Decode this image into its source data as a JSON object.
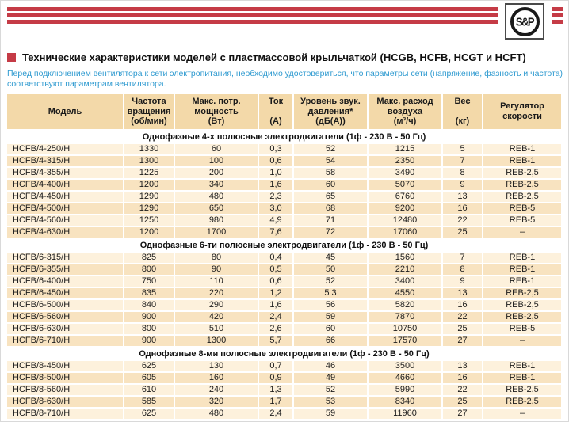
{
  "logo": {
    "text": "S&P"
  },
  "title": {
    "text": "Технические характеристики моделей с пластмассовой крыльчаткой (HCGB, HCFB, HCGT и HCFT)"
  },
  "note": {
    "text": "Перед подключением вентилятора к сети электропитания, необходимо удостовериться, что параметры сети (напряжение, фазность и частота) соответствуют параметрам вентилятора."
  },
  "colors": {
    "brand_red": "#c53b46",
    "note_blue": "#2e9ad0",
    "header_tan": "#f3d9a9",
    "row_light": "#fdf1dc",
    "row_dark": "#f8e3c0"
  },
  "table": {
    "columns": [
      {
        "key": "model",
        "label": "Модель"
      },
      {
        "key": "rpm",
        "label": "Частота\nвращения\n(об/мин)"
      },
      {
        "key": "power",
        "label": "Макс. потр.\nмощность\n(Вт)"
      },
      {
        "key": "current",
        "label": "Ток\n\n(А)"
      },
      {
        "key": "noise",
        "label": "Уровень звук.\nдавления*\n(дБ(А))"
      },
      {
        "key": "airflow",
        "label": "Макс. расход\nвоздуха\n(м³/ч)"
      },
      {
        "key": "weight",
        "label": "Вес\n\n(кг)"
      },
      {
        "key": "regulator",
        "label": "Регулятор\nскорости"
      }
    ],
    "sections": [
      {
        "header": "Однофазные 4-х полюсные электродвигатели (1ф - 230 В - 50 Гц)",
        "rows": [
          {
            "model": "HCFB/4-250/H",
            "rpm": "1330",
            "power": "60",
            "current": "0,3",
            "noise": "52",
            "airflow": "1215",
            "weight": "5",
            "regulator": "REB-1"
          },
          {
            "model": "HCFB/4-315/H",
            "rpm": "1300",
            "power": "100",
            "current": "0,6",
            "noise": "54",
            "airflow": "2350",
            "weight": "7",
            "regulator": "REB-1"
          },
          {
            "model": "HCFB/4-355/H",
            "rpm": "1225",
            "power": "200",
            "current": "1,0",
            "noise": "58",
            "airflow": "3490",
            "weight": "8",
            "regulator": "REB-2,5"
          },
          {
            "model": "HCFB/4-400/H",
            "rpm": "1200",
            "power": "340",
            "current": "1,6",
            "noise": "60",
            "airflow": "5070",
            "weight": "9",
            "regulator": "REB-2,5"
          },
          {
            "model": "HCFB/4-450/H",
            "rpm": "1290",
            "power": "480",
            "current": "2,3",
            "noise": "65",
            "airflow": "6760",
            "weight": "13",
            "regulator": "REB-2,5"
          },
          {
            "model": "HCFB/4-500/H",
            "rpm": "1290",
            "power": "650",
            "current": "3,0",
            "noise": "68",
            "airflow": "9200",
            "weight": "16",
            "regulator": "REB-5"
          },
          {
            "model": "HCFB/4-560/H",
            "rpm": "1250",
            "power": "980",
            "current": "4,9",
            "noise": "71",
            "airflow": "12480",
            "weight": "22",
            "regulator": "REB-5"
          },
          {
            "model": "HCFB/4-630/H",
            "rpm": "1200",
            "power": "1700",
            "current": "7,6",
            "noise": "72",
            "airflow": "17060",
            "weight": "25",
            "regulator": "–"
          }
        ]
      },
      {
        "header": "Однофазные 6-ти полюсные электродвигатели (1ф - 230 В - 50 Гц)",
        "rows": [
          {
            "model": "HCFB/6-315/H",
            "rpm": "825",
            "power": "80",
            "current": "0,4",
            "noise": "45",
            "airflow": "1560",
            "weight": "7",
            "regulator": "REB-1"
          },
          {
            "model": "HCFB/6-355/H",
            "rpm": "800",
            "power": "90",
            "current": "0,5",
            "noise": "50",
            "airflow": "2210",
            "weight": "8",
            "regulator": "REB-1"
          },
          {
            "model": "HCFB/6-400/H",
            "rpm": "750",
            "power": "110",
            "current": "0,6",
            "noise": "52",
            "airflow": "3400",
            "weight": "9",
            "regulator": "REB-1"
          },
          {
            "model": "HCFB/6-450/H",
            "rpm": "835",
            "power": "220",
            "current": "1,2",
            "noise": "5 3",
            "airflow": "4550",
            "weight": "13",
            "regulator": "REB-2,5"
          },
          {
            "model": "HCFB/6-500/H",
            "rpm": "840",
            "power": "290",
            "current": "1,6",
            "noise": "56",
            "airflow": "5820",
            "weight": "16",
            "regulator": "REB-2,5"
          },
          {
            "model": "HCFB/6-560/H",
            "rpm": "900",
            "power": "420",
            "current": "2,4",
            "noise": "59",
            "airflow": "7870",
            "weight": "22",
            "regulator": "REB-2,5"
          },
          {
            "model": "HCFB/6-630/H",
            "rpm": "800",
            "power": "510",
            "current": "2,6",
            "noise": "60",
            "airflow": "10750",
            "weight": "25",
            "regulator": "REB-5"
          },
          {
            "model": "HCFB/6-710/H",
            "rpm": "900",
            "power": "1300",
            "current": "5,7",
            "noise": "66",
            "airflow": "17570",
            "weight": "27",
            "regulator": "–"
          }
        ]
      },
      {
        "header": "Однофазные 8-ми полюсные электродвигатели (1ф - 230 В - 50 Гц)",
        "rows": [
          {
            "model": "HCFB/8-450/H",
            "rpm": "625",
            "power": "130",
            "current": "0,7",
            "noise": "46",
            "airflow": "3500",
            "weight": "13",
            "regulator": "REB-1"
          },
          {
            "model": "HCFB/8-500/H",
            "rpm": "605",
            "power": "160",
            "current": "0,9",
            "noise": "49",
            "airflow": "4660",
            "weight": "16",
            "regulator": "REB-1"
          },
          {
            "model": "HCFB/8-560/H",
            "rpm": "610",
            "power": "240",
            "current": "1,3",
            "noise": "52",
            "airflow": "5990",
            "weight": "22",
            "regulator": "REB-2,5"
          },
          {
            "model": "HCFB/8-630/H",
            "rpm": "585",
            "power": "320",
            "current": "1,7",
            "noise": "53",
            "airflow": "8340",
            "weight": "25",
            "regulator": "REB-2,5"
          },
          {
            "model": "HCFB/8-710/H",
            "rpm": "625",
            "power": "480",
            "current": "2,4",
            "noise": "59",
            "airflow": "11960",
            "weight": "27",
            "regulator": "–"
          }
        ]
      }
    ]
  }
}
